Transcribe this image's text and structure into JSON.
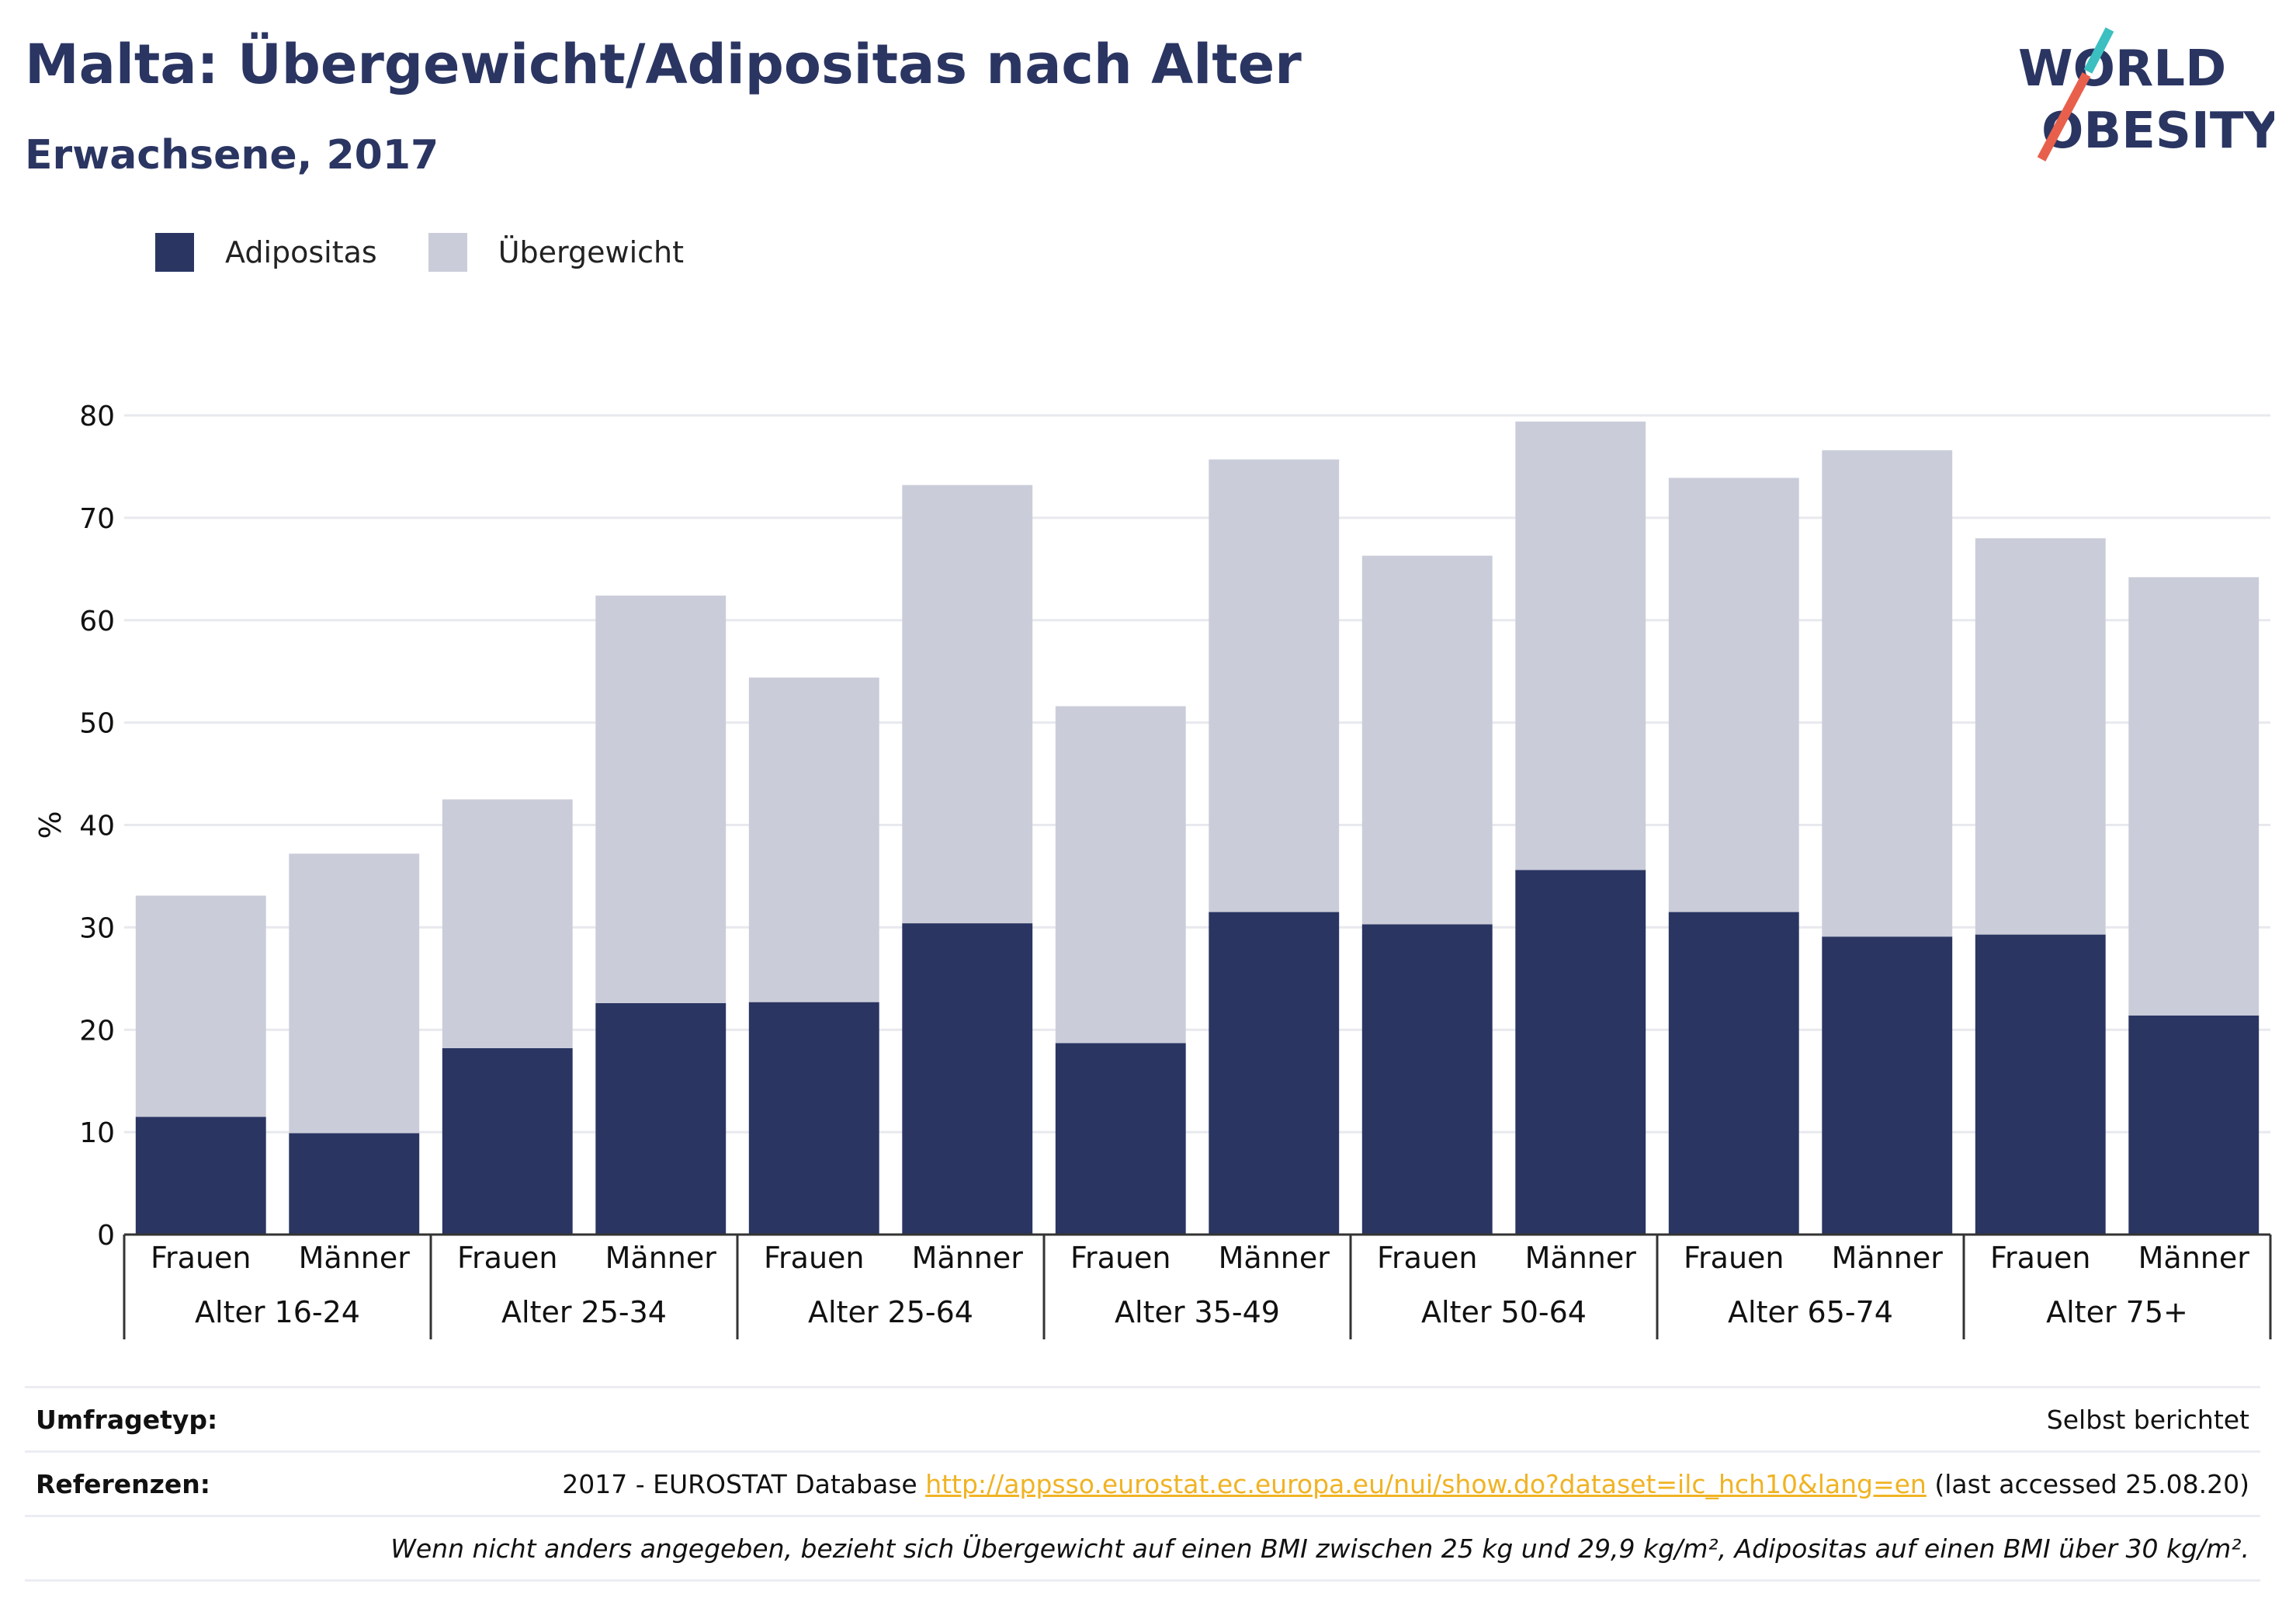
{
  "title": "Malta: Übergewicht/Adipositas nach Alter",
  "subtitle": "Erwachsene, 2017",
  "logo": {
    "line1": "WORLD",
    "line2": "OBESITY"
  },
  "colors": {
    "obesity": "#2a3562",
    "overweight": "#cacdd9",
    "accent_red": "#e8604c",
    "accent_teal": "#3cbfc0",
    "link": "#f0b323"
  },
  "legend": [
    {
      "label": "Adipositas",
      "color": "#2a3562"
    },
    {
      "label": "Übergewicht",
      "color": "#cacdd9"
    }
  ],
  "chart_data": {
    "type": "bar",
    "stacked": true,
    "ylabel": "%",
    "ylim": [
      0,
      80
    ],
    "yticks": [
      0,
      10,
      20,
      30,
      40,
      50,
      60,
      70,
      80
    ],
    "grid": true,
    "groups": [
      {
        "label": "Alter 16-24",
        "categories": [
          "Frauen",
          "Männer"
        ]
      },
      {
        "label": "Alter 25-34",
        "categories": [
          "Frauen",
          "Männer"
        ]
      },
      {
        "label": "Alter 25-64",
        "categories": [
          "Frauen",
          "Männer"
        ]
      },
      {
        "label": "Alter 35-49",
        "categories": [
          "Frauen",
          "Männer"
        ]
      },
      {
        "label": "Alter 50-64",
        "categories": [
          "Frauen",
          "Männer"
        ]
      },
      {
        "label": "Alter 65-74",
        "categories": [
          "Frauen",
          "Männer"
        ]
      },
      {
        "label": "Alter 75+",
        "categories": [
          "Frauen",
          "Männer"
        ]
      }
    ],
    "series": [
      {
        "name": "Adipositas",
        "values": [
          11.5,
          9.9,
          18.2,
          22.6,
          22.7,
          30.4,
          18.7,
          31.5,
          30.3,
          35.6,
          31.5,
          29.1,
          29.3,
          21.4
        ]
      },
      {
        "name": "Übergewicht",
        "values": [
          21.6,
          27.3,
          24.3,
          39.8,
          31.7,
          42.8,
          32.9,
          44.2,
          36.0,
          43.8,
          42.4,
          47.5,
          38.7,
          42.8
        ]
      }
    ]
  },
  "table": [
    {
      "label": "Umfragetyp:",
      "value": "Selbst berichtet"
    },
    {
      "label": "Referenzen:",
      "value_prefix": "2017 - EUROSTAT Database ",
      "link": "http://appsso.eurostat.ec.europa.eu/nui/show.do?dataset=ilc_hch10&lang=en",
      "value_suffix": " (last accessed 25.08.20)"
    }
  ],
  "note": "Wenn nicht anders angegeben, bezieht sich Übergewicht auf einen BMI zwischen 25 kg und 29,9 kg/m², Adipositas auf einen BMI über 30 kg/m²."
}
